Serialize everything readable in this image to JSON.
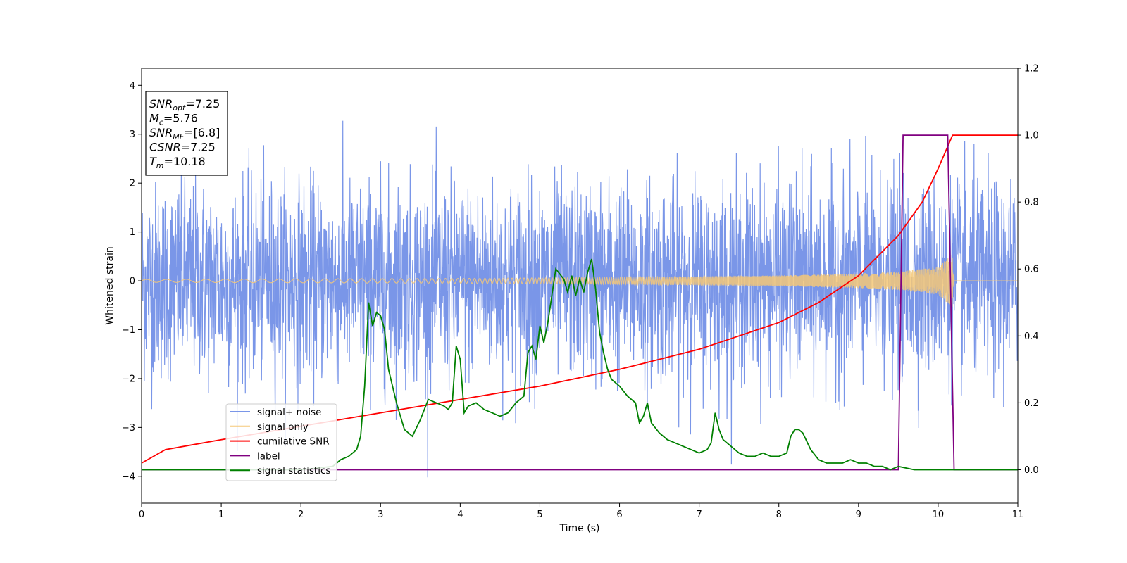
{
  "chart_data": {
    "type": "line",
    "xlabel": "Time (s)",
    "ylabel": "Whitened strain",
    "xlim": [
      0,
      11
    ],
    "ylim_left": [
      -4.55,
      4.35
    ],
    "ylim_right": [
      -0.1,
      1.2
    ],
    "x_ticks": [
      "0",
      "1",
      "2",
      "3",
      "4",
      "5",
      "6",
      "7",
      "8",
      "9",
      "10",
      "11"
    ],
    "y_ticks_left": [
      "4",
      "3",
      "2",
      "1",
      "0",
      "−1",
      "−2",
      "−3",
      "−4"
    ],
    "y_ticks_right": [
      "1.2",
      "1.0",
      "0.8",
      "0.6",
      "0.4",
      "0.2",
      "0.0"
    ],
    "legend": {
      "location": "lower-left",
      "entries": [
        {
          "label": "signal+ noise",
          "color": "#7a96e8"
        },
        {
          "label": "signal only",
          "color": "#f5c878"
        },
        {
          "label": "cumilative SNR",
          "color": "#ff0000"
        },
        {
          "label": "label",
          "color": "#800080"
        },
        {
          "label": "signal statistics",
          "color": "#008000"
        }
      ]
    },
    "info_box": [
      {
        "main": "SNR",
        "sub": "opt",
        "value": "=7.25"
      },
      {
        "main": "M",
        "sub": "c",
        "value": "=5.76"
      },
      {
        "main": "SNR",
        "sub": "MF",
        "value": "=[6.8]"
      },
      {
        "main": "CSNR",
        "sub": "",
        "value": "=7.25"
      },
      {
        "main": "T",
        "sub": "m",
        "value": "=10.18"
      }
    ],
    "series": [
      {
        "name": "signal+ noise",
        "axis": "left",
        "color": "#7a96e8",
        "description_params": {
          "noise_sigma": 1.0,
          "x_range": [
            0,
            11
          ]
        }
      },
      {
        "name": "signal only",
        "axis": "left",
        "color": "#f5c878",
        "envelope": {
          "x": [
            0,
            2,
            4,
            6,
            8,
            9,
            9.5,
            10,
            10.18,
            10.2,
            11
          ],
          "amp": [
            0.03,
            0.04,
            0.05,
            0.07,
            0.11,
            0.15,
            0.19,
            0.28,
            0.55,
            0.0,
            0.0
          ]
        }
      },
      {
        "name": "cumilative SNR",
        "axis": "right",
        "color": "#ff0000",
        "x": [
          0,
          0.3,
          1,
          2,
          3,
          4,
          5,
          6,
          7,
          8,
          8.5,
          9,
          9.5,
          9.8,
          10,
          10.18,
          10.2,
          11
        ],
        "y": [
          0.02,
          0.06,
          0.09,
          0.13,
          0.17,
          0.21,
          0.25,
          0.3,
          0.36,
          0.44,
          0.5,
          0.58,
          0.7,
          0.8,
          0.9,
          1.0,
          1.0,
          1.0
        ]
      },
      {
        "name": "label",
        "axis": "right",
        "color": "#800080",
        "x": [
          0,
          9.5,
          9.56,
          10.12,
          10.2,
          11
        ],
        "y": [
          0.0,
          0.0,
          1.0,
          1.0,
          0.0,
          0.0
        ]
      },
      {
        "name": "signal statistics",
        "axis": "right",
        "color": "#008000",
        "x": [
          0,
          2.0,
          2.4,
          2.5,
          2.6,
          2.7,
          2.75,
          2.8,
          2.85,
          2.9,
          2.95,
          3.0,
          3.05,
          3.1,
          3.2,
          3.3,
          3.4,
          3.5,
          3.6,
          3.7,
          3.8,
          3.85,
          3.9,
          3.95,
          4.0,
          4.05,
          4.1,
          4.2,
          4.3,
          4.4,
          4.5,
          4.6,
          4.7,
          4.8,
          4.85,
          4.9,
          4.95,
          5.0,
          5.05,
          5.1,
          5.15,
          5.2,
          5.3,
          5.35,
          5.4,
          5.45,
          5.5,
          5.55,
          5.6,
          5.65,
          5.7,
          5.75,
          5.8,
          5.85,
          5.9,
          6.0,
          6.1,
          6.2,
          6.25,
          6.3,
          6.35,
          6.4,
          6.5,
          6.6,
          6.7,
          6.8,
          6.9,
          7.0,
          7.1,
          7.15,
          7.2,
          7.25,
          7.3,
          7.4,
          7.5,
          7.6,
          7.7,
          7.8,
          7.9,
          8.0,
          8.1,
          8.15,
          8.2,
          8.25,
          8.3,
          8.4,
          8.5,
          8.6,
          8.7,
          8.8,
          8.9,
          9.0,
          9.1,
          9.2,
          9.3,
          9.4,
          9.5,
          9.7,
          10.0,
          10.3,
          11
        ],
        "y": [
          0.0,
          0.0,
          0.01,
          0.03,
          0.04,
          0.06,
          0.1,
          0.25,
          0.5,
          0.43,
          0.47,
          0.46,
          0.42,
          0.3,
          0.2,
          0.12,
          0.1,
          0.15,
          0.21,
          0.2,
          0.19,
          0.18,
          0.2,
          0.37,
          0.33,
          0.17,
          0.19,
          0.2,
          0.18,
          0.17,
          0.16,
          0.17,
          0.2,
          0.22,
          0.35,
          0.37,
          0.33,
          0.43,
          0.38,
          0.44,
          0.52,
          0.6,
          0.57,
          0.53,
          0.58,
          0.52,
          0.57,
          0.53,
          0.59,
          0.63,
          0.54,
          0.41,
          0.35,
          0.3,
          0.27,
          0.25,
          0.22,
          0.2,
          0.14,
          0.16,
          0.2,
          0.14,
          0.11,
          0.09,
          0.08,
          0.07,
          0.06,
          0.05,
          0.06,
          0.08,
          0.17,
          0.12,
          0.09,
          0.07,
          0.05,
          0.04,
          0.04,
          0.05,
          0.04,
          0.04,
          0.05,
          0.1,
          0.12,
          0.12,
          0.11,
          0.06,
          0.03,
          0.02,
          0.02,
          0.02,
          0.03,
          0.02,
          0.02,
          0.01,
          0.01,
          0.0,
          0.01,
          0.0,
          0.0,
          0.0,
          0.0
        ]
      }
    ]
  }
}
